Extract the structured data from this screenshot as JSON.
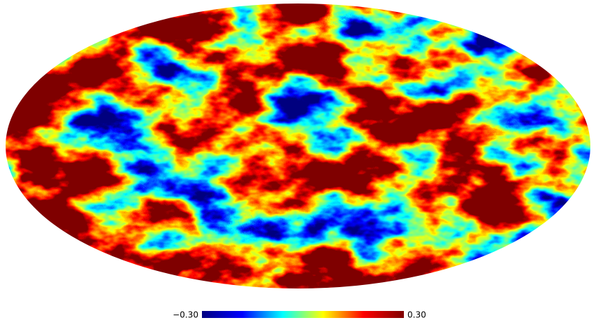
{
  "map": {
    "projection": "mollweide",
    "colorbar": {
      "colors": [
        "#00007f",
        "#0000ff",
        "#00ffff",
        "#ffff00",
        "#ff0000",
        "#7f0000"
      ],
      "lim": [
        -0.3,
        0.3
      ],
      "ticks": [
        {
          "value": -0.3,
          "label": "−0.30"
        },
        {
          "value": 0.3,
          "label": "0.30"
        }
      ]
    }
  }
}
